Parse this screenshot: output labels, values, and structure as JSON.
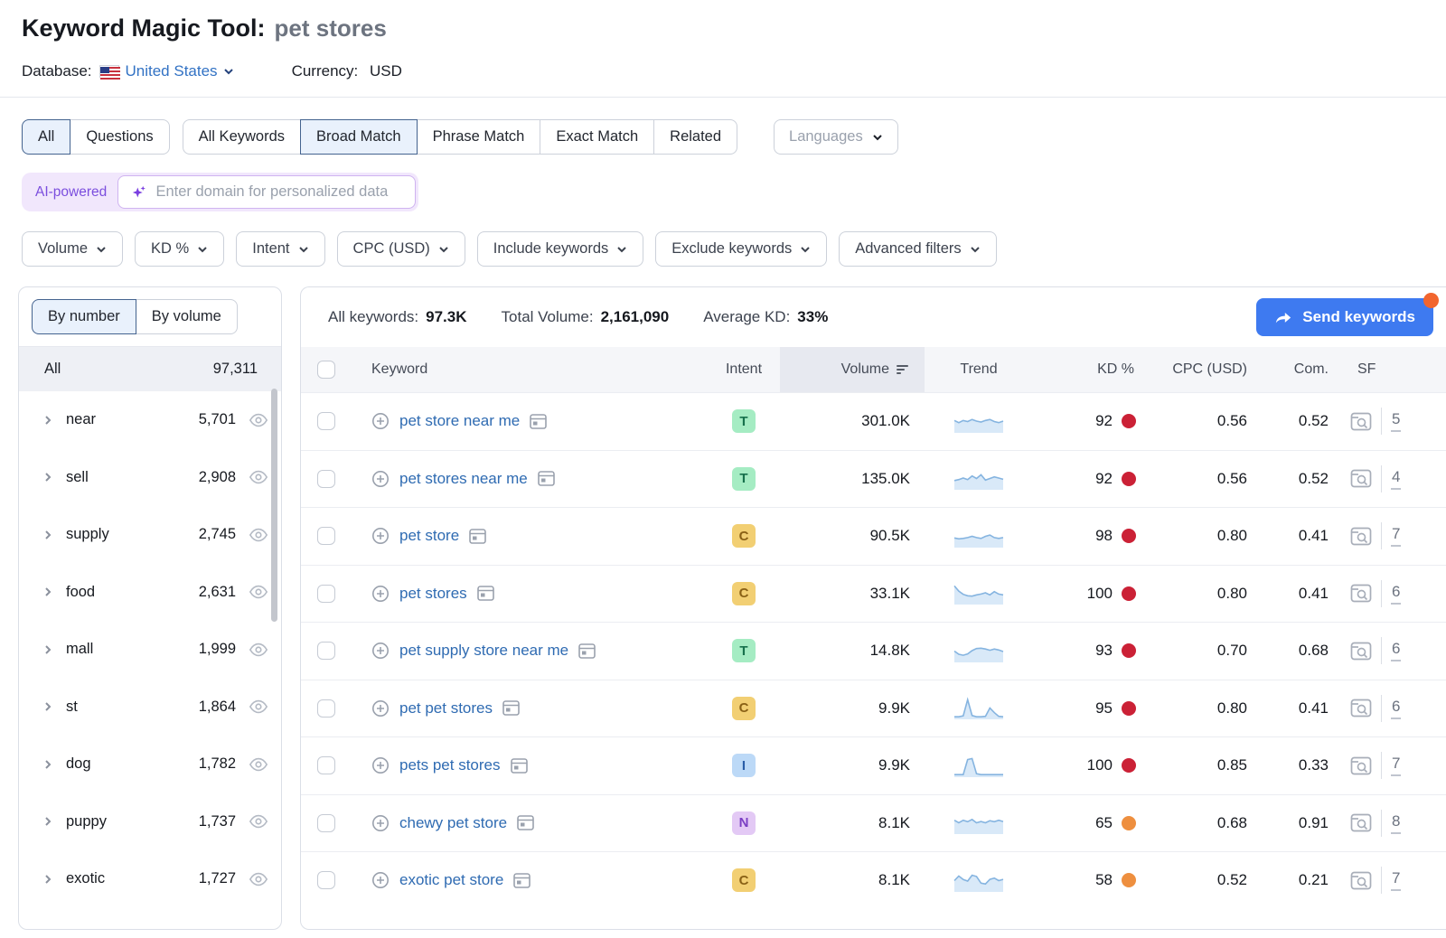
{
  "header": {
    "title": "Keyword Magic Tool:",
    "query": "pet stores",
    "database_label": "Database:",
    "database_value": "United States",
    "currency_label": "Currency:",
    "currency_value": "USD"
  },
  "tabs": {
    "group1": [
      {
        "label": "All",
        "selected": true
      },
      {
        "label": "Questions",
        "selected": false
      }
    ],
    "group2": [
      {
        "label": "All Keywords",
        "selected": false
      },
      {
        "label": "Broad Match",
        "selected": true
      },
      {
        "label": "Phrase Match",
        "selected": false
      },
      {
        "label": "Exact Match",
        "selected": false
      },
      {
        "label": "Related",
        "selected": false
      }
    ],
    "languages_label": "Languages"
  },
  "ai_bar": {
    "badge": "AI-powered",
    "placeholder": "Enter domain for personalized data"
  },
  "filters": [
    "Volume",
    "KD %",
    "Intent",
    "CPC (USD)",
    "Include keywords",
    "Exclude keywords",
    "Advanced filters"
  ],
  "sidebar": {
    "toggle": [
      {
        "label": "By number",
        "selected": true
      },
      {
        "label": "By volume",
        "selected": false
      }
    ],
    "all_row": {
      "label": "All",
      "count": "97,311"
    },
    "groups": [
      {
        "label": "near",
        "count": "5,701"
      },
      {
        "label": "sell",
        "count": "2,908"
      },
      {
        "label": "supply",
        "count": "2,745"
      },
      {
        "label": "food",
        "count": "2,631"
      },
      {
        "label": "mall",
        "count": "1,999"
      },
      {
        "label": "st",
        "count": "1,864"
      },
      {
        "label": "dog",
        "count": "1,782"
      },
      {
        "label": "puppy",
        "count": "1,737"
      },
      {
        "label": "exotic",
        "count": "1,727"
      }
    ]
  },
  "summary": {
    "all_keywords_label": "All keywords:",
    "all_keywords_value": "97.3K",
    "total_volume_label": "Total Volume:",
    "total_volume_value": "2,161,090",
    "avg_kd_label": "Average KD:",
    "avg_kd_value": "33%",
    "send_button": "Send keywords"
  },
  "table": {
    "columns": [
      "Keyword",
      "Intent",
      "Volume",
      "Trend",
      "KD %",
      "CPC (USD)",
      "Com.",
      "SF"
    ],
    "rows": [
      {
        "keyword": "pet store near me",
        "intent": "T",
        "volume": "301.0K",
        "kd": "92",
        "kd_level": "red",
        "cpc": "0.56",
        "com": "0.52",
        "sf": "5",
        "trend": [
          0.55,
          0.45,
          0.55,
          0.5,
          0.6,
          0.52,
          0.48,
          0.55,
          0.6,
          0.5,
          0.45,
          0.52
        ]
      },
      {
        "keyword": "pet stores near me",
        "intent": "T",
        "volume": "135.0K",
        "kd": "92",
        "kd_level": "red",
        "cpc": "0.56",
        "com": "0.52",
        "sf": "4",
        "trend": [
          0.4,
          0.45,
          0.52,
          0.45,
          0.62,
          0.5,
          0.68,
          0.42,
          0.5,
          0.58,
          0.52,
          0.46
        ]
      },
      {
        "keyword": "pet store",
        "intent": "C",
        "volume": "90.5K",
        "kd": "98",
        "kd_level": "red",
        "cpc": "0.80",
        "com": "0.41",
        "sf": "7",
        "trend": [
          0.42,
          0.38,
          0.4,
          0.44,
          0.5,
          0.44,
          0.4,
          0.5,
          0.56,
          0.44,
          0.4,
          0.44
        ]
      },
      {
        "keyword": "pet stores",
        "intent": "C",
        "volume": "33.1K",
        "kd": "100",
        "kd_level": "red",
        "cpc": "0.80",
        "com": "0.41",
        "sf": "6",
        "trend": [
          0.85,
          0.6,
          0.45,
          0.38,
          0.36,
          0.42,
          0.46,
          0.52,
          0.42,
          0.58,
          0.46,
          0.42
        ]
      },
      {
        "keyword": "pet supply store near me",
        "intent": "T",
        "volume": "14.8K",
        "kd": "93",
        "kd_level": "red",
        "cpc": "0.70",
        "com": "0.68",
        "sf": "6",
        "trend": [
          0.5,
          0.35,
          0.3,
          0.36,
          0.52,
          0.62,
          0.64,
          0.6,
          0.54,
          0.6,
          0.55,
          0.48
        ]
      },
      {
        "keyword": "pet pet stores",
        "intent": "C",
        "volume": "9.9K",
        "kd": "95",
        "kd_level": "red",
        "cpc": "0.80",
        "com": "0.41",
        "sf": "6",
        "trend": [
          0.08,
          0.08,
          0.12,
          0.9,
          0.14,
          0.08,
          0.08,
          0.1,
          0.5,
          0.28,
          0.1,
          0.08
        ]
      },
      {
        "keyword": "pets pet stores",
        "intent": "I",
        "volume": "9.9K",
        "kd": "100",
        "kd_level": "red",
        "cpc": "0.85",
        "com": "0.33",
        "sf": "7",
        "trend": [
          0.08,
          0.08,
          0.08,
          0.8,
          0.85,
          0.12,
          0.08,
          0.08,
          0.08,
          0.08,
          0.08,
          0.08
        ]
      },
      {
        "keyword": "chewy pet store",
        "intent": "N",
        "volume": "8.1K",
        "kd": "65",
        "kd_level": "orange",
        "cpc": "0.68",
        "com": "0.91",
        "sf": "8",
        "trend": [
          0.62,
          0.5,
          0.62,
          0.55,
          0.66,
          0.5,
          0.56,
          0.5,
          0.6,
          0.55,
          0.62,
          0.56
        ]
      },
      {
        "keyword": "exotic pet store",
        "intent": "C",
        "volume": "8.1K",
        "kd": "58",
        "kd_level": "orange",
        "cpc": "0.52",
        "com": "0.21",
        "sf": "7",
        "trend": [
          0.5,
          0.72,
          0.55,
          0.48,
          0.76,
          0.7,
          0.38,
          0.34,
          0.56,
          0.62,
          0.5,
          0.56
        ]
      }
    ]
  },
  "colors": {
    "accent_blue": "#3e7af0",
    "link_blue": "#2f6bb2",
    "badge_orange": "#f2652e",
    "kd_red": "#cb2136",
    "kd_orange": "#ee8f3f",
    "trend_line": "#85b4e0",
    "trend_fill": "#d9e9f8",
    "intent": {
      "T": {
        "bg": "#a5ecc3",
        "text": "#17714c"
      },
      "C": {
        "bg": "#f2cf73",
        "text": "#8a6116"
      },
      "I": {
        "bg": "#bcd9f7",
        "text": "#2a5da8"
      },
      "N": {
        "bg": "#e3c9f5",
        "text": "#7b3fc4"
      }
    }
  }
}
